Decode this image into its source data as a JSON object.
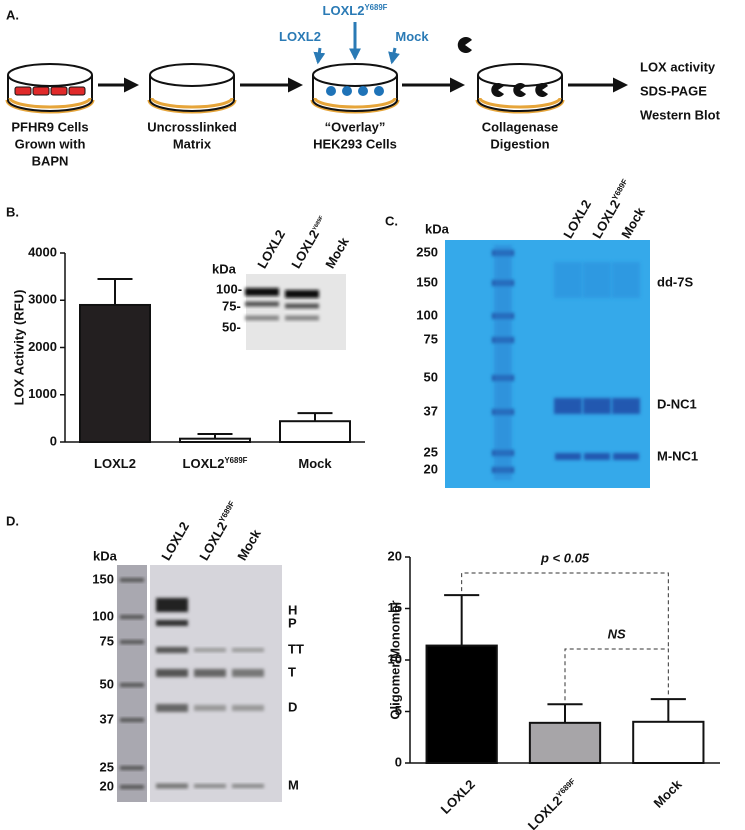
{
  "panel_a": {
    "label": "A.",
    "treatments": [
      [
        "LOXL2"
      ],
      [
        "LOXL2",
        "Y689F"
      ],
      [
        "Mock"
      ]
    ],
    "steps": [
      [
        "PFHR9 Cells",
        "Grown with",
        "BAPN"
      ],
      [
        "Uncrosslinked",
        "Matrix"
      ],
      [
        "“Overlay”",
        "HEK293 Cells"
      ],
      [
        "Collagenase",
        "Digestion"
      ]
    ],
    "outputs": [
      "LOX activity",
      "SDS-PAGE",
      "Western Blot"
    ]
  },
  "panel_b": {
    "label": "B.",
    "inset": {
      "unit": "kDa",
      "lanes": [
        [
          "LOXL2"
        ],
        [
          "LOXL2",
          "Y689F"
        ],
        [
          "Mock"
        ]
      ],
      "markers": [
        "100-",
        "75-",
        "50-"
      ]
    }
  },
  "panel_c": {
    "label": "C.",
    "unit": "kDa",
    "markers": [
      250,
      150,
      100,
      75,
      50,
      37,
      25,
      20
    ],
    "lanes": [
      [
        "LOXL2"
      ],
      [
        "LOXL2",
        "Y689F"
      ],
      [
        "Mock"
      ]
    ],
    "bands": [
      "dd-7S",
      "D-NC1",
      "M-NC1"
    ]
  },
  "panel_d": {
    "label": "D.",
    "unit": "kDa",
    "markers": [
      150,
      100,
      75,
      50,
      37,
      25,
      20
    ],
    "lanes": [
      [
        "LOXL2"
      ],
      [
        "LOXL2",
        "Y689F"
      ],
      [
        "Mock"
      ]
    ],
    "bands": [
      "H",
      "P",
      "TT",
      "T",
      "D",
      "M"
    ]
  },
  "chart_data": [
    {
      "type": "bar",
      "ylabel": "LOX Activity (RFU)",
      "categories": [
        [
          "LOXL2"
        ],
        [
          "LOXL2",
          "Y689F"
        ],
        [
          "Mock"
        ]
      ],
      "values": [
        2900,
        70,
        440
      ],
      "errors": [
        550,
        100,
        170
      ],
      "colors": [
        "#231f20",
        "#ffffff",
        "#ffffff"
      ],
      "ylim": [
        0,
        4000
      ],
      "yticks": [
        0,
        1000,
        2000,
        3000,
        4000
      ]
    },
    {
      "type": "bar",
      "ylabel": "Oligomer/Monomer",
      "categories": [
        [
          "LOXL2"
        ],
        [
          "LOXL2",
          "Y689F"
        ],
        [
          "Mock"
        ]
      ],
      "values": [
        11.4,
        3.9,
        4.0
      ],
      "errors": [
        4.9,
        1.8,
        2.2
      ],
      "colors": [
        "#000000",
        "#a7a5a8",
        "#ffffff"
      ],
      "ylim": [
        0,
        20
      ],
      "yticks": [
        0,
        5,
        10,
        15,
        20
      ],
      "annotations": [
        "p < 0.05",
        "NS"
      ]
    }
  ]
}
